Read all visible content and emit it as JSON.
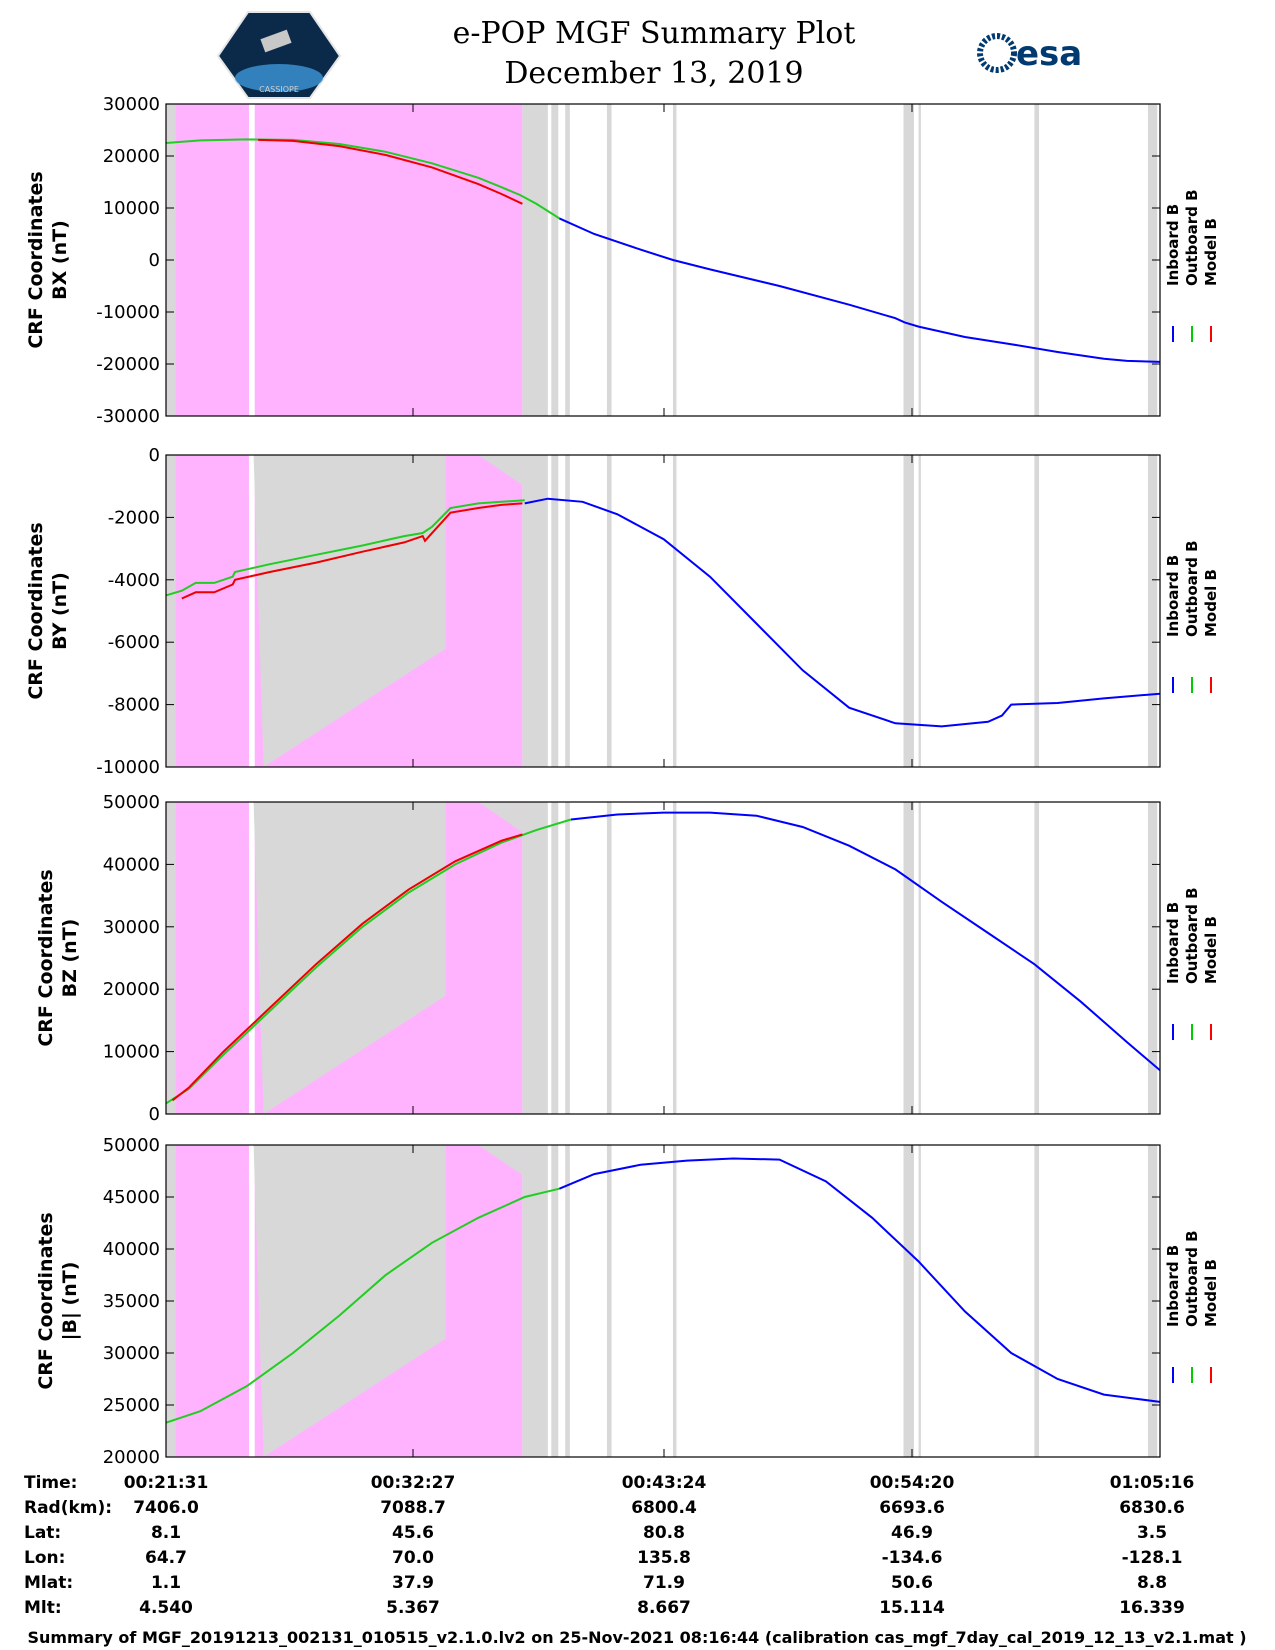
{
  "header": {
    "title_line1": "e-POP MGF Summary Plot",
    "title_line2": "December 13, 2019",
    "logo_left_caption": "CASSIOPE",
    "logo_right_text": "esa"
  },
  "legend": {
    "entries": [
      "Inboard B",
      "Outboard B",
      "Model B"
    ],
    "colors": [
      "#0000ff",
      "#00cc00",
      "#ff0000"
    ]
  },
  "colors": {
    "inboard": "#0000ff",
    "outboard": "#22cc22",
    "model": "#ee0000",
    "pink": "#ffb3ff",
    "gray": "#d8d8d8"
  },
  "chart_data": [
    {
      "type": "line",
      "ylabel_line1": "CRF Coordinates",
      "ylabel_line2": "BX (nT)",
      "ylim": [
        -30000,
        30000
      ],
      "yticks": [
        "30000",
        "20000",
        "10000",
        "0",
        "-10000",
        "-20000",
        "-30000"
      ],
      "xlim_minutes": [
        21.52,
        64.42
      ],
      "series": [
        {
          "name": "Outboard B",
          "x": [
            21.52,
            23.0,
            25.0,
            27.0,
            29.0,
            31.0,
            33.0,
            35.0,
            36.0,
            36.8,
            37.5,
            38.5
          ],
          "y": [
            22500,
            23000,
            23200,
            23100,
            22300,
            20800,
            18600,
            15800,
            14000,
            12500,
            10800,
            8000
          ]
        },
        {
          "name": "Model B",
          "x": [
            25.5,
            27.0,
            29.0,
            31.0,
            33.0,
            35.0,
            36.0,
            36.9
          ],
          "y": [
            23100,
            22900,
            21900,
            20200,
            17800,
            14600,
            12700,
            10800
          ]
        },
        {
          "name": "Inboard B",
          "x": [
            38.5,
            40.0,
            42.0,
            43.4,
            45.0,
            48.0,
            51.0,
            53.0,
            53.4,
            54.0,
            56.0,
            58.0,
            60.0,
            62.0,
            63.0,
            64.42
          ],
          "y": [
            8000,
            5000,
            2000,
            0,
            -1800,
            -5000,
            -8600,
            -11200,
            -12000,
            -12800,
            -14800,
            -16200,
            -17700,
            -19000,
            -19400,
            -19600
          ]
        }
      ]
    },
    {
      "type": "line",
      "ylabel_line1": "CRF Coordinates",
      "ylabel_line2": "BY (nT)",
      "ylim": [
        -10000,
        0
      ],
      "yticks": [
        "0",
        "-2000",
        "-4000",
        "-6000",
        "-8000",
        "-10000"
      ],
      "xlim_minutes": [
        21.52,
        64.42
      ],
      "series": [
        {
          "name": "Outboard B",
          "x": [
            21.52,
            22.2,
            22.8,
            23.6,
            24.4,
            24.5,
            26.0,
            28.0,
            30.0,
            31.8,
            32.6,
            33.0,
            33.8,
            35.0,
            36.0,
            37.0
          ],
          "y": [
            -4500,
            -4350,
            -4100,
            -4100,
            -3900,
            -3750,
            -3500,
            -3200,
            -2900,
            -2600,
            -2500,
            -2300,
            -1700,
            -1550,
            -1500,
            -1450
          ]
        },
        {
          "name": "Model B",
          "x": [
            22.2,
            22.8,
            23.6,
            24.4,
            24.5,
            26.0,
            28.0,
            30.0,
            31.8,
            32.6,
            32.7,
            33.8,
            35.0,
            36.0,
            36.9
          ],
          "y": [
            -4600,
            -4400,
            -4400,
            -4150,
            -4000,
            -3750,
            -3450,
            -3100,
            -2800,
            -2600,
            -2750,
            -1850,
            -1700,
            -1600,
            -1550
          ]
        },
        {
          "name": "Inboard B",
          "x": [
            37.0,
            38.0,
            39.5,
            41.0,
            43.0,
            45.0,
            47.0,
            49.0,
            51.0,
            53.0,
            55.0,
            57.0,
            57.6,
            58.0,
            60.0,
            62.0,
            64.42
          ],
          "y": [
            -1550,
            -1400,
            -1500,
            -1900,
            -2700,
            -3900,
            -5400,
            -6900,
            -8100,
            -8600,
            -8700,
            -8550,
            -8350,
            -8000,
            -7950,
            -7800,
            -7650
          ]
        }
      ]
    },
    {
      "type": "line",
      "ylabel_line1": "CRF Coordinates",
      "ylabel_line2": "BZ (nT)",
      "ylim": [
        0,
        50000
      ],
      "yticks": [
        "50000",
        "40000",
        "30000",
        "20000",
        "10000",
        "0"
      ],
      "xlim_minutes": [
        21.52,
        64.42
      ],
      "series": [
        {
          "name": "Outboard B",
          "x": [
            21.52,
            22.5,
            24.0,
            26.0,
            28.0,
            30.0,
            32.0,
            34.0,
            36.0,
            37.5,
            39.0
          ],
          "y": [
            1700,
            4000,
            9500,
            16500,
            23500,
            30000,
            35500,
            40000,
            43500,
            45500,
            47200
          ]
        },
        {
          "name": "Model B",
          "x": [
            21.8,
            22.5,
            24.0,
            26.0,
            28.0,
            30.0,
            32.0,
            34.0,
            36.0,
            36.9
          ],
          "y": [
            2200,
            4200,
            10000,
            17000,
            24000,
            30500,
            36000,
            40500,
            43800,
            44800
          ]
        },
        {
          "name": "Inboard B",
          "x": [
            39.0,
            41.0,
            43.0,
            45.0,
            47.0,
            49.0,
            51.0,
            53.0,
            55.0,
            57.0,
            59.0,
            61.0,
            63.0,
            64.42
          ],
          "y": [
            47200,
            48000,
            48300,
            48300,
            47800,
            46000,
            43000,
            39200,
            34000,
            29000,
            24000,
            18000,
            11500,
            7000
          ]
        }
      ]
    },
    {
      "type": "line",
      "ylabel_line1": "CRF Coordinates",
      "ylabel_line2": "|B| (nT)",
      "ylim": [
        20000,
        50000
      ],
      "yticks": [
        "50000",
        "45000",
        "40000",
        "35000",
        "30000",
        "25000",
        "20000"
      ],
      "xlim_minutes": [
        21.52,
        64.42
      ],
      "series": [
        {
          "name": "Outboard B",
          "x": [
            21.52,
            23.0,
            25.0,
            27.0,
            29.0,
            31.0,
            33.0,
            35.0,
            37.0,
            38.5
          ],
          "y": [
            23300,
            24400,
            26800,
            30000,
            33600,
            37500,
            40600,
            43000,
            45000,
            45800
          ]
        },
        {
          "name": "Inboard B",
          "x": [
            38.5,
            40.0,
            42.0,
            44.0,
            46.0,
            48.0,
            50.0,
            52.0,
            54.0,
            56.0,
            58.0,
            60.0,
            62.0,
            64.42
          ],
          "y": [
            45800,
            47200,
            48100,
            48500,
            48700,
            48600,
            46500,
            43000,
            38800,
            34000,
            30000,
            27500,
            26000,
            25300
          ]
        }
      ]
    }
  ],
  "shading": {
    "pink_spans": [
      [
        21.55,
        25.1
      ],
      [
        25.35,
        36.9
      ]
    ],
    "gray_spans": [
      [
        21.55,
        21.95
      ],
      [
        36.9,
        38.0
      ],
      [
        38.15,
        38.45
      ],
      [
        38.75,
        38.95
      ],
      [
        40.55,
        40.75
      ],
      [
        43.4,
        43.55
      ],
      [
        53.35,
        53.8
      ],
      [
        54.0,
        54.1
      ],
      [
        59.0,
        59.2
      ],
      [
        63.9,
        64.3
      ]
    ],
    "white_lines": [
      25.2
    ]
  },
  "info_table": {
    "labels": [
      "Time:",
      "Rad(km):",
      "Lat:",
      "Lon:",
      "Mlat:",
      "Mlt:"
    ],
    "columns": [
      [
        "00:21:31",
        "7406.0",
        "8.1",
        "64.7",
        "1.1",
        "4.540"
      ],
      [
        "00:32:27",
        "7088.7",
        "45.6",
        "70.0",
        "37.9",
        "5.367"
      ],
      [
        "00:43:24",
        "6800.4",
        "80.8",
        "135.8",
        "71.9",
        "8.667"
      ],
      [
        "00:54:20",
        "6693.6",
        "46.9",
        "-134.6",
        "50.6",
        "15.114"
      ],
      [
        "01:05:16",
        "6830.6",
        "3.5",
        "-128.1",
        "8.8",
        "16.339"
      ]
    ]
  },
  "footer": {
    "text": "Summary of MGF_20191213_002131_010515_v2.1.0.lv2 on 25-Nov-2021 08:16:44 (calibration cas_mgf_7day_cal_2019_12_13_v2.1.mat )"
  }
}
